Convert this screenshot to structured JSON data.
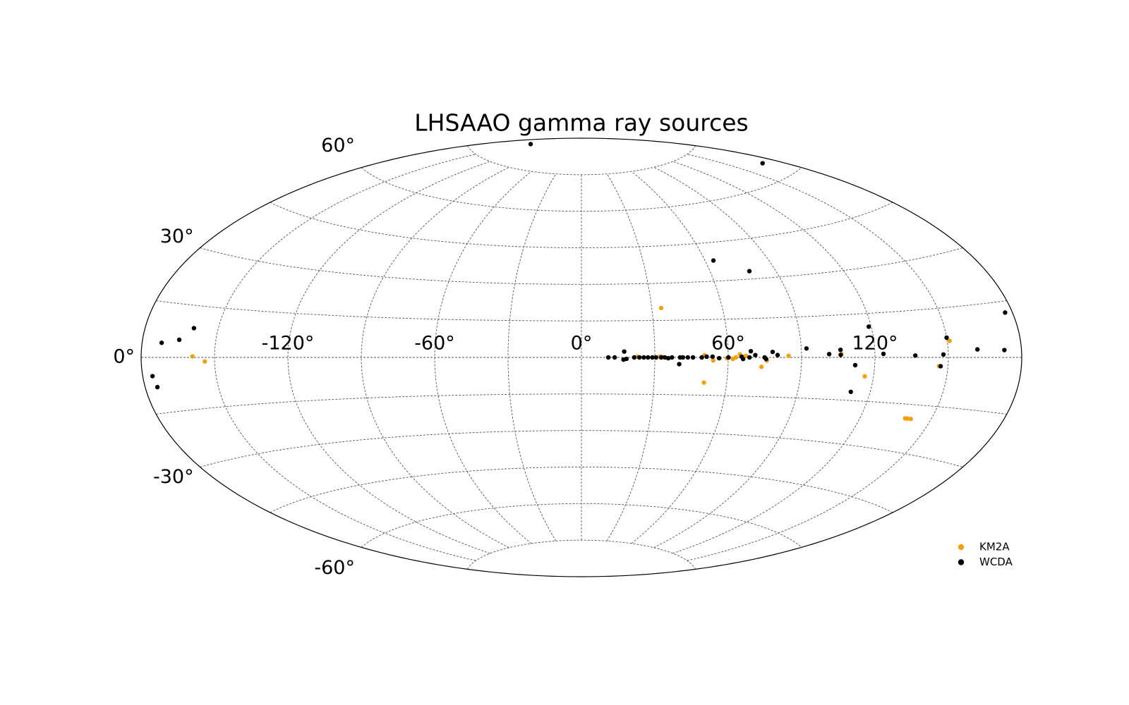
{
  "chart_data": {
    "type": "scatter",
    "projection": "aitoff",
    "title": "LHSAAO gamma ray sources",
    "xlim": [
      -180,
      180
    ],
    "ylim": [
      -90,
      90
    ],
    "xticks": [
      {
        "value": -120,
        "label": "-120°"
      },
      {
        "value": -60,
        "label": "-60°"
      },
      {
        "value": 0,
        "label": "0°"
      },
      {
        "value": 60,
        "label": "60°"
      },
      {
        "value": 120,
        "label": "120°"
      }
    ],
    "yticks": [
      {
        "value": 60,
        "label": "60°"
      },
      {
        "value": 30,
        "label": "30°"
      },
      {
        "value": 0,
        "label": "0°"
      },
      {
        "value": -30,
        "label": "-30°"
      },
      {
        "value": -60,
        "label": "-60°"
      }
    ],
    "xgrid": [
      -150,
      -120,
      -90,
      -60,
      -30,
      0,
      30,
      60,
      90,
      120,
      150
    ],
    "ygrid": [
      -75,
      -60,
      -45,
      -30,
      -15,
      0,
      15,
      30,
      45,
      60,
      75
    ],
    "grid": true,
    "legend": "lower right",
    "series": [
      {
        "name": "KM2A",
        "color": "#f5a10f",
        "x": [
          34,
          50.6,
          -160,
          -159,
          -154,
          140,
          141.5,
          139,
          116.4,
          73.7,
          84.7,
          151,
          22.8,
          32,
          32.9,
          50.3,
          53.9,
          59.5,
          61.9,
          63.1,
          64.8,
          67.2,
          75.8,
          106.3,
          136.5,
          146.3
        ],
        "values": [
          20,
          -10,
          8.5,
          0.3,
          -1.2,
          -19.5,
          -19.5,
          -19.5,
          -6.5,
          -3.6,
          0.6,
          5,
          0.3,
          0.3,
          0.3,
          0.9,
          -1.2,
          -0.3,
          -0.6,
          0,
          1.2,
          0.6,
          -1.2,
          1.2,
          0.6,
          -2.7
        ]
      },
      {
        "name": "WCDA",
        "color": "#000000",
        "x": [
          11,
          13.6,
          17.2,
          18.4,
          17.5,
          21.6,
          23.7,
          25.5,
          27.2,
          29,
          30.5,
          32.6,
          34.1,
          35.5,
          37,
          40,
          40.3,
          41.5,
          43.5,
          45.6,
          49.2,
          51.2,
          53.6,
          56.3,
          60.1,
          65.5,
          66.1,
          68.7,
          69.3,
          71.1,
          74.9,
          75.5,
          78.2,
          80.2,
          92.1,
          101.3,
          106,
          106,
          112,
          112,
          119,
          123.5,
          136.5,
          148,
          147,
          150,
          162,
          177,
          173,
          78,
          64,
          -150,
          170,
          -176,
          -175,
          -172,
          -165,
          -160
        ],
        "values": [
          0,
          0,
          -0.9,
          -0.6,
          2.4,
          0,
          0,
          0,
          0,
          0,
          0,
          0,
          0,
          -0.3,
          0,
          -2.7,
          0,
          0,
          0,
          0,
          0,
          0.3,
          0.3,
          -0.3,
          0,
          0.3,
          -0.6,
          0,
          2.4,
          0.9,
          0,
          -0.6,
          2.1,
          0.9,
          3.3,
          1.2,
          2.7,
          0.9,
          -2.7,
          -12,
          10.5,
          1.2,
          0.6,
          0.9,
          -2.7,
          6,
          2.3,
          12,
          2,
          33,
          38,
          83,
          65,
          -5,
          -8,
          4,
          5,
          8.5
        ]
      }
    ]
  }
}
